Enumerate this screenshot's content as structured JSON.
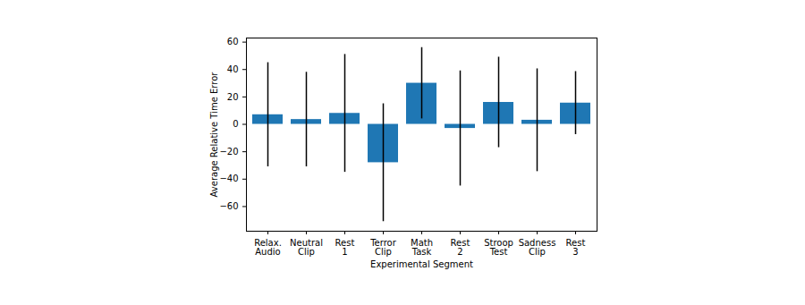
{
  "chart_data": {
    "type": "bar",
    "x_label": "Experimental Segment",
    "y_label": "Average Relative Time Error",
    "categories": [
      "Relax.\nAudio",
      "Neutral\nClip",
      "Rest\n1",
      "Terror\nClip",
      "Math\nTask",
      "Rest\n2",
      "Stroop\nTest",
      "Sadness\nClip",
      "Rest\n3"
    ],
    "values": [
      7,
      3.5,
      8,
      -28,
      30,
      -3,
      16,
      3,
      15.5
    ],
    "errors": [
      38,
      34.5,
      43,
      43,
      26,
      42,
      33,
      37.5,
      23
    ],
    "color": "#1f77b4",
    "error_color": "#000000",
    "ylim": [
      -78,
      63
    ],
    "yticks": [
      -60,
      -40,
      -20,
      0,
      20,
      40,
      60
    ],
    "grid": false
  }
}
